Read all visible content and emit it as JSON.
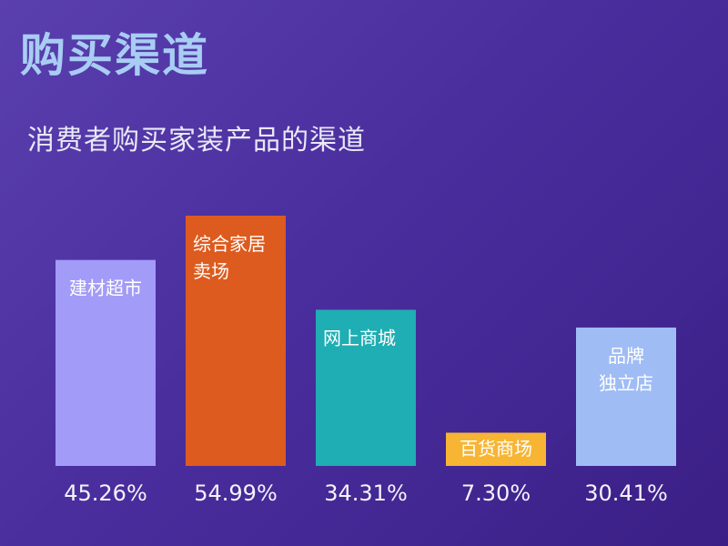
{
  "title": "购买渠道",
  "subtitle": "消费者购买家装产品的渠道",
  "chart_data": {
    "type": "bar",
    "categories": [
      "建材超市",
      "综合家居卖场",
      "网上商城",
      "百货商场",
      "品牌独立店"
    ],
    "bar_label_lines": [
      [
        "建材超市"
      ],
      [
        "综合家居",
        "卖场"
      ],
      [
        "网上商城"
      ],
      [
        "百货商场"
      ],
      [
        "品牌",
        "独立店"
      ]
    ],
    "bar_label_align": [
      "center",
      "left",
      "left",
      "center",
      "center"
    ],
    "bar_label_position": [
      "top",
      "top",
      "top",
      "bottom",
      "top"
    ],
    "values": [
      45.26,
      54.99,
      34.31,
      7.3,
      30.41
    ],
    "value_labels": [
      "45.26%",
      "54.99%",
      "34.31%",
      "7.30%",
      "30.41%"
    ],
    "colors": [
      "#a29bf7",
      "#dd5b1e",
      "#1eaeb3",
      "#f7b533",
      "#9fbcf5"
    ],
    "ylim": [
      0,
      60
    ],
    "grid": false,
    "legend": "none"
  },
  "theme": {
    "background_top": "#5a3fae",
    "background_bottom": "#3b1f86",
    "title_color": "#a8cdf3"
  }
}
